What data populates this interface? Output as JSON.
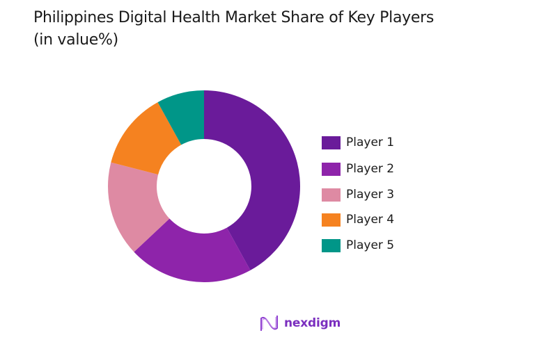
{
  "title": {
    "line1": "Philippines Digital Health Market Share of Key Players",
    "line2": "(in value%)"
  },
  "chart_data": {
    "type": "pie",
    "subtype": "donut",
    "title": "Philippines Digital Health Market Share of Key Players (in value%)",
    "categories": [
      "Player 1",
      "Player 2",
      "Player 3",
      "Player 4",
      "Player 5"
    ],
    "values": [
      42,
      21,
      16,
      13,
      8
    ],
    "colors": [
      "#6a1b9a",
      "#8e24aa",
      "#de8aa3",
      "#f58220",
      "#009688"
    ],
    "legend_position": "right",
    "start_angle": "12 o'clock, clockwise"
  },
  "legend": {
    "items": [
      {
        "label": "Player 1",
        "color": "#6a1b9a"
      },
      {
        "label": "Player 2",
        "color": "#8e24aa"
      },
      {
        "label": "Player 3",
        "color": "#de8aa3"
      },
      {
        "label": "Player 4",
        "color": "#f58220"
      },
      {
        "label": "Player 5",
        "color": "#009688"
      }
    ]
  },
  "branding": {
    "logo_text": "nexdigm",
    "logo_color": "#7b2fbf"
  }
}
